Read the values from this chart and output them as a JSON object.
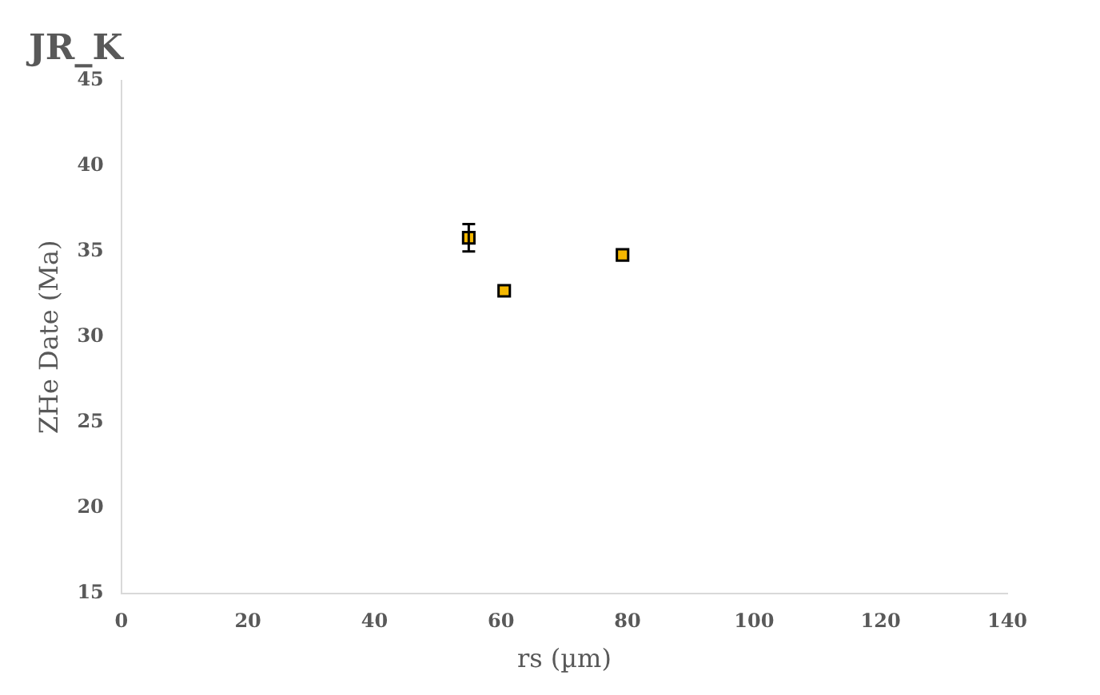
{
  "chart_data": {
    "type": "scatter",
    "title": "JR_K",
    "xlabel": "rs (µm)",
    "ylabel": "ZHe Date (Ma)",
    "x": [
      54.9,
      60.5,
      79.2
    ],
    "values": [
      35.8,
      32.7,
      34.8
    ],
    "errors": [
      0.8,
      null,
      null
    ],
    "color": "#f5b800",
    "marker": "square",
    "grid": false,
    "legend": false,
    "xlim": [
      0,
      140
    ],
    "xticks": [
      0,
      20,
      40,
      60,
      80,
      100,
      120,
      140
    ],
    "ylim": [
      15,
      45
    ],
    "yticks": [
      15,
      20,
      25,
      30,
      35,
      40,
      45
    ]
  }
}
